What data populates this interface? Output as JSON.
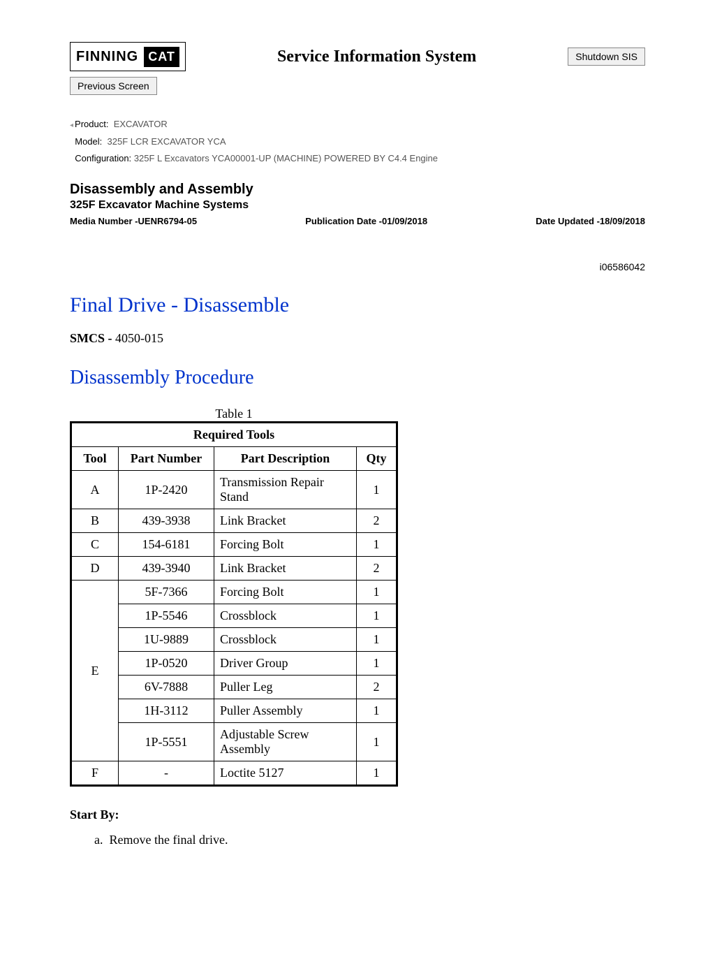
{
  "header": {
    "brand_left": "FINNING",
    "brand_badge": "CAT",
    "system_title": "Service Information System",
    "shutdown_label": "Shutdown SIS",
    "previous_label": "Previous Screen"
  },
  "product_meta": {
    "product_label": "Product:",
    "product_value": "EXCAVATOR",
    "model_label": "Model:",
    "model_value": "325F LCR EXCAVATOR YCA",
    "config_label": "Configuration:",
    "config_value": "325F L Excavators YCA00001-UP (MACHINE) POWERED BY C4.4 Engine"
  },
  "doc_header": {
    "section_title": "Disassembly and Assembly",
    "subsection_title": "325F Excavator Machine Systems",
    "media_number": "Media Number -UENR6794-05",
    "pub_date": "Publication Date -01/09/2018",
    "date_updated": "Date Updated -18/09/2018",
    "doc_id": "i06586042"
  },
  "content": {
    "title": "Final Drive - Disassemble",
    "smcs_label": "SMCS - ",
    "smcs_value": "4050-015",
    "procedure_title": "Disassembly Procedure",
    "table_caption": "Table 1",
    "table_title": "Required Tools",
    "columns": [
      "Tool",
      "Part Number",
      "Part Description",
      "Qty"
    ],
    "rows": [
      {
        "tool": "A",
        "pn": "1P-2420",
        "desc": "Transmission Repair Stand",
        "qty": "1",
        "rowspan": 1
      },
      {
        "tool": "B",
        "pn": "439-3938",
        "desc": "Link Bracket",
        "qty": "2",
        "rowspan": 1
      },
      {
        "tool": "C",
        "pn": "154-6181",
        "desc": "Forcing Bolt",
        "qty": "1",
        "rowspan": 1
      },
      {
        "tool": "D",
        "pn": "439-3940",
        "desc": "Link Bracket",
        "qty": "2",
        "rowspan": 1
      },
      {
        "tool": "E",
        "pn": "5F-7366",
        "desc": "Forcing Bolt",
        "qty": "1",
        "rowspan": 7
      },
      {
        "tool": "",
        "pn": "1P-5546",
        "desc": "Crossblock",
        "qty": "1",
        "rowspan": 0
      },
      {
        "tool": "",
        "pn": "1U-9889",
        "desc": "Crossblock",
        "qty": "1",
        "rowspan": 0
      },
      {
        "tool": "",
        "pn": "1P-0520",
        "desc": "Driver Group",
        "qty": "1",
        "rowspan": 0
      },
      {
        "tool": "",
        "pn": "6V-7888",
        "desc": "Puller Leg",
        "qty": "2",
        "rowspan": 0
      },
      {
        "tool": "",
        "pn": "1H-3112",
        "desc": "Puller Assembly",
        "qty": "1",
        "rowspan": 0
      },
      {
        "tool": "",
        "pn": "1P-5551",
        "desc": "Adjustable Screw Assembly",
        "qty": "1",
        "rowspan": 0
      },
      {
        "tool": "F",
        "pn": "-",
        "desc": "Loctite 5127",
        "qty": "1",
        "rowspan": 1
      }
    ],
    "start_by_label": "Start By:",
    "steps": [
      "Remove the final drive."
    ]
  },
  "colors": {
    "heading_blue": "#0033cc",
    "text_black": "#000000",
    "meta_gray": "#555555"
  }
}
